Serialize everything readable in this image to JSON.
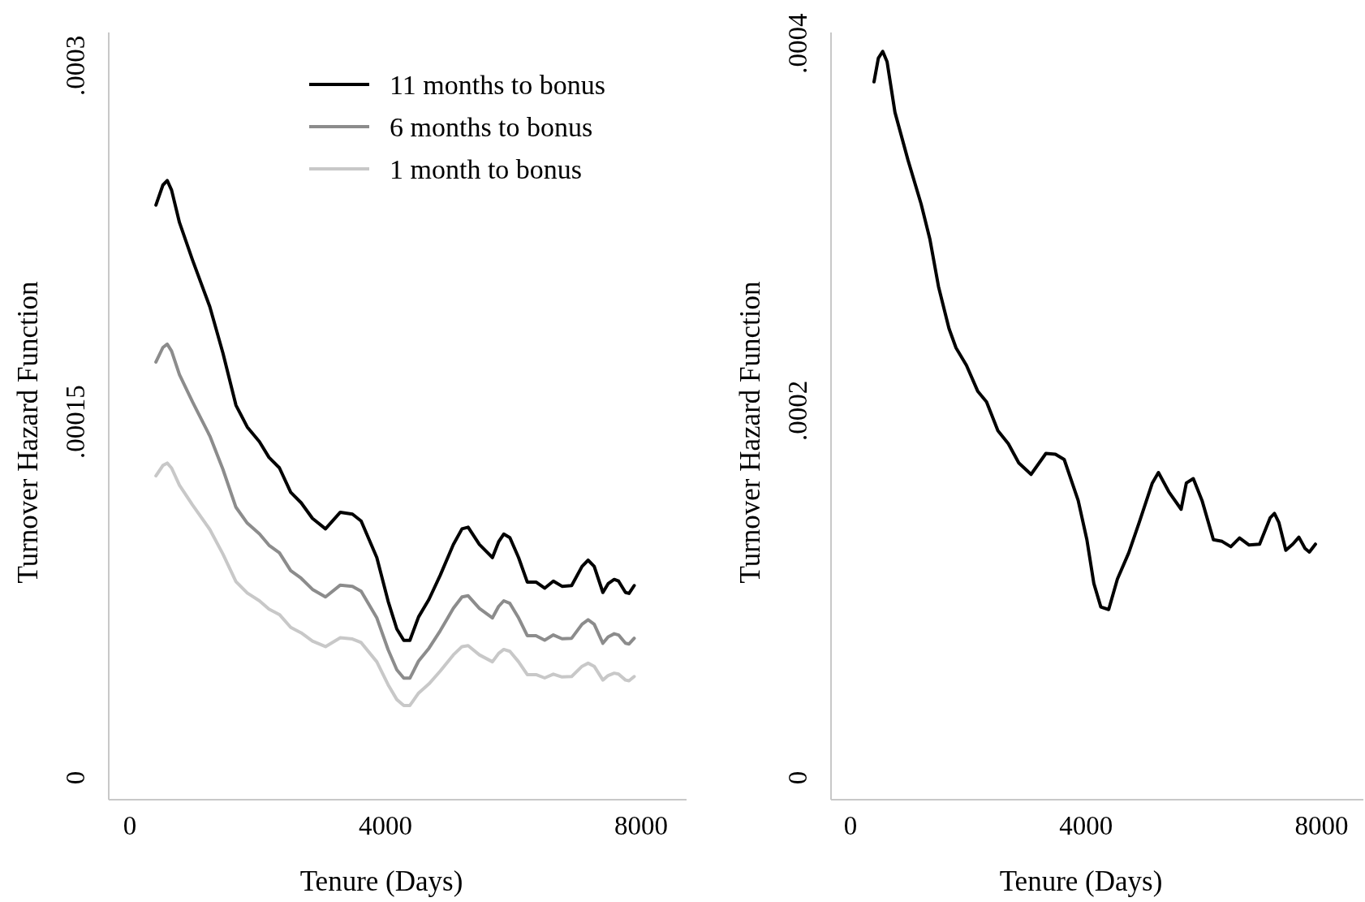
{
  "chart_data": [
    {
      "type": "line",
      "xlabel": "Tenure (Days)",
      "ylabel": "Turnover Hazard Function",
      "xlim": [
        -330,
        8710
      ],
      "ylim": [
        -9.2e-06,
        0.000314
      ],
      "xticks": [
        0,
        4000,
        8000
      ],
      "yticks": [
        0,
        {
          "value": 0.00015,
          "label": ".00015"
        },
        {
          "value": 0.0003,
          "label": ".0003"
        }
      ],
      "grid": false,
      "legend": "top right",
      "x": [
        408,
        517,
        585,
        653,
        776,
        980,
        1252,
        1456,
        1660,
        1837,
        2027,
        2177,
        2340,
        2517,
        2680,
        2857,
        3061,
        3293,
        3483,
        3619,
        3864,
        4041,
        4177,
        4286,
        4381,
        4517,
        4680,
        4857,
        5061,
        5197,
        5293,
        5469,
        5673,
        5769,
        5850,
        5946,
        6082,
        6218,
        6354,
        6490,
        6626,
        6762,
        6912,
        7075,
        7170,
        7265,
        7401,
        7483,
        7578,
        7646,
        7755,
        7810,
        7891
      ],
      "series": [
        {
          "name": "11 months to bonus",
          "color": "#000000",
          "values": [
            0.0002413,
            0.0002497,
            0.0002516,
            0.0002476,
            0.000234,
            0.0002182,
            0.0001984,
            0.000179,
            0.000157,
            0.0001478,
            0.0001416,
            0.000135,
            0.0001306,
            0.0001203,
            0.0001159,
            0.0001093,
            0.0001049,
            0.0001119,
            0.0001111,
            0.0001082,
            9.28e-05,
            7.44e-05,
            6.27e-05,
            5.79e-05,
            5.79e-05,
            6.78e-05,
            7.52e-05,
            8.54e-05,
            9.83e-05,
            0.0001049,
            0.0001056,
            9.83e-05,
            9.28e-05,
            9.94e-05,
            0.0001027,
            0.0001012,
            9.28e-05,
            8.25e-05,
            8.25e-05,
            7.99e-05,
            8.29e-05,
            8.07e-05,
            8.1e-05,
            8.91e-05,
            9.17e-05,
            8.91e-05,
            7.81e-05,
            8.18e-05,
            8.36e-05,
            8.29e-05,
            7.81e-05,
            7.77e-05,
            8.1e-05
          ]
        },
        {
          "name": "6 months to bonus",
          "color": "#8c8c8c",
          "values": [
            0.0001752,
            0.0001813,
            0.0001827,
            0.0001798,
            0.0001699,
            0.0001584,
            0.000144,
            0.00013,
            0.000114,
            0.0001073,
            0.0001028,
            9.8e-05,
            9.48e-05,
            8.73e-05,
            8.41e-05,
            7.94e-05,
            7.62e-05,
            8.12e-05,
            8.07e-05,
            7.86e-05,
            6.74e-05,
            5.4e-05,
            4.55e-05,
            4.2e-05,
            4.2e-05,
            4.92e-05,
            5.46e-05,
            6.2e-05,
            7.14e-05,
            7.62e-05,
            7.67e-05,
            7.14e-05,
            6.74e-05,
            7.22e-05,
            7.46e-05,
            7.35e-05,
            6.74e-05,
            5.99e-05,
            5.99e-05,
            5.8e-05,
            6.02e-05,
            5.86e-05,
            5.88e-05,
            6.47e-05,
            6.66e-05,
            6.47e-05,
            5.67e-05,
            5.94e-05,
            6.07e-05,
            6.02e-05,
            5.67e-05,
            5.64e-05,
            5.88e-05
          ]
        },
        {
          "name": "1 month to bonus",
          "color": "#c8c8c8",
          "values": [
            0.0001272,
            0.0001316,
            0.0001326,
            0.0001305,
            0.0001233,
            0.000115,
            0.0001046,
            9.43e-05,
            8.27e-05,
            7.79e-05,
            7.46e-05,
            7.11e-05,
            6.88e-05,
            6.34e-05,
            6.11e-05,
            5.76e-05,
            5.53e-05,
            5.9e-05,
            5.85e-05,
            5.7e-05,
            4.89e-05,
            3.92e-05,
            3.3e-05,
            3.05e-05,
            3.05e-05,
            3.57e-05,
            3.96e-05,
            4.5e-05,
            5.18e-05,
            5.53e-05,
            5.57e-05,
            5.18e-05,
            4.89e-05,
            5.24e-05,
            5.41e-05,
            5.33e-05,
            4.89e-05,
            4.35e-05,
            4.35e-05,
            4.21e-05,
            4.37e-05,
            4.25e-05,
            4.27e-05,
            4.7e-05,
            4.83e-05,
            4.7e-05,
            4.12e-05,
            4.31e-05,
            4.41e-05,
            4.37e-05,
            4.12e-05,
            4.09e-05,
            4.27e-05
          ]
        }
      ]
    },
    {
      "type": "line",
      "xlabel": "Tenure (Days)",
      "ylabel": "Turnover Hazard Function",
      "xlim": [
        -330,
        8710
      ],
      "ylim": [
        -1.19e-05,
        0.000406
      ],
      "xticks": [
        0,
        4000,
        8000
      ],
      "yticks": [
        0,
        {
          "value": 0.0002,
          "label": ".0002"
        },
        {
          "value": 0.0004,
          "label": ".0004"
        }
      ],
      "grid": false,
      "legend": false,
      "x": [
        400,
        474,
        548,
        622,
        756,
        978,
        1200,
        1348,
        1496,
        1674,
        1793,
        1970,
        2163,
        2311,
        2504,
        2681,
        2859,
        3067,
        3319,
        3481,
        3630,
        3867,
        4015,
        4133,
        4252,
        4385,
        4533,
        4726,
        4904,
        5126,
        5230,
        5407,
        5615,
        5704,
        5822,
        5970,
        6163,
        6311,
        6459,
        6607,
        6770,
        6948,
        7126,
        7200,
        7274,
        7393,
        7511,
        7615,
        7719,
        7793,
        7896
      ],
      "series": [
        {
          "color": "#000000",
          "values": [
            0.0003791,
            0.000392,
            0.0003957,
            0.0003901,
            0.0003625,
            0.0003364,
            0.0003126,
            0.0002936,
            0.0002675,
            0.0002447,
            0.0002342,
            0.0002247,
            0.0002105,
            0.0002048,
            0.0001891,
            0.000182,
            0.0001715,
            0.0001653,
            0.0001767,
            0.0001763,
            0.0001734,
            0.0001511,
            0.0001297,
            0.0001059,
            9.31e-05,
            9.17e-05,
            0.0001083,
            0.0001226,
            0.0001392,
            0.0001606,
            0.0001663,
            0.0001558,
            0.0001463,
            0.0001606,
            0.000163,
            0.0001511,
            0.0001297,
            0.0001288,
            0.0001259,
            0.0001307,
            0.0001268,
            0.0001273,
            0.0001416,
            0.000144,
            0.0001392,
            0.000124,
            0.0001273,
            0.0001311,
            0.000125,
            0.000123,
            0.0001273
          ]
        }
      ]
    }
  ]
}
